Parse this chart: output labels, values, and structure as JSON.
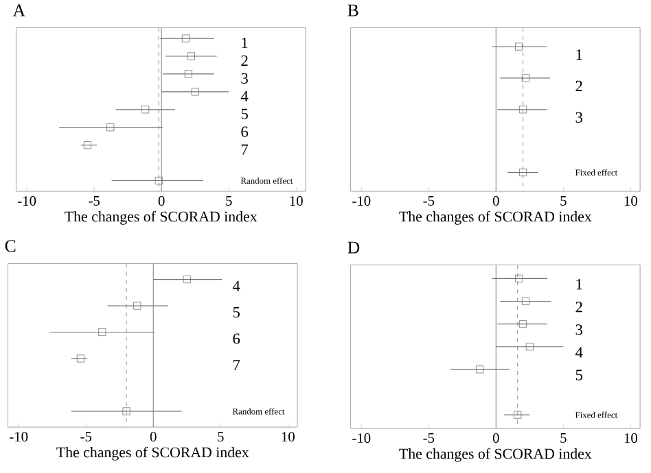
{
  "chart_data": [
    {
      "type": "scatter",
      "title": "A",
      "xlabel": "The changes of SCORAD index",
      "orientation": "horizontal",
      "marker": "square",
      "color": "#707070",
      "categories": [
        "1",
        "2",
        "3",
        "4",
        "5",
        "6",
        "7",
        null,
        "Random effect"
      ],
      "values": [
        1.8,
        2.2,
        2.0,
        2.5,
        -1.2,
        -3.8,
        -5.5,
        null,
        -0.2
      ],
      "errors": [
        [
          -0.1,
          3.9
        ],
        [
          0.3,
          4.1
        ],
        [
          0.1,
          3.9
        ],
        [
          0,
          5.0
        ],
        [
          -3.4,
          1.0
        ],
        [
          -7.6,
          0.1
        ],
        [
          -6.0,
          -4.8
        ],
        null,
        [
          -3.7,
          3.1
        ]
      ],
      "xlim": [
        -10.8,
        10.7
      ],
      "xticks": [
        -10,
        -5,
        0,
        5,
        10
      ],
      "ref_lines": [
        {
          "axis": "x",
          "value": 0,
          "color": "#909090",
          "line_style": "solid"
        },
        {
          "axis": "x",
          "value": -0.2,
          "color": "#a0a0a0",
          "line_style": "dashed"
        }
      ]
    },
    {
      "type": "scatter",
      "title": "B",
      "xlabel": "The changes of SCORAD index",
      "orientation": "horizontal",
      "marker": "square",
      "color": "#707070",
      "categories": [
        "1",
        "2",
        "3",
        null,
        "Fixed effect"
      ],
      "values": [
        1.7,
        2.2,
        2.0,
        null,
        2.0
      ],
      "errors": [
        [
          -0.3,
          3.8
        ],
        [
          0.3,
          4.0
        ],
        [
          0.1,
          3.8
        ],
        null,
        [
          0.85,
          3.1
        ]
      ],
      "xlim": [
        -10.8,
        10.7
      ],
      "xticks": [
        -10,
        -5,
        0,
        5,
        10
      ],
      "ref_lines": [
        {
          "axis": "x",
          "value": 0,
          "color": "#909090",
          "line_style": "solid"
        },
        {
          "axis": "x",
          "value": 2.0,
          "color": "#a0a0a0",
          "line_style": "dashed"
        }
      ]
    },
    {
      "type": "scatter",
      "title": "C",
      "xlabel": "The changes of SCORAD index",
      "orientation": "horizontal",
      "marker": "square",
      "color": "#707070",
      "categories": [
        "4",
        "5",
        "6",
        "7",
        null,
        "Random effect"
      ],
      "values": [
        2.5,
        -1.2,
        -3.8,
        -5.4,
        null,
        -2.0
      ],
      "errors": [
        [
          0,
          5.1
        ],
        [
          -3.4,
          1.1
        ],
        [
          -7.7,
          0.1
        ],
        [
          -6.1,
          -4.9
        ],
        null,
        [
          -6.1,
          2.1
        ]
      ],
      "xlim": [
        -10.8,
        10.7
      ],
      "xticks": [
        -10,
        -5,
        0,
        5,
        10
      ],
      "ref_lines": [
        {
          "axis": "x",
          "value": 0,
          "color": "#909090",
          "line_style": "solid"
        },
        {
          "axis": "x",
          "value": -2.0,
          "color": "#a0a0a0",
          "line_style": "dashed"
        }
      ]
    },
    {
      "type": "scatter",
      "title": "D",
      "xlabel": "The changes of SCORAD index",
      "orientation": "horizontal",
      "marker": "square",
      "color": "#707070",
      "categories": [
        "1",
        "2",
        "3",
        "4",
        "5",
        null,
        "Fixed effect"
      ],
      "values": [
        1.7,
        2.2,
        2.0,
        2.5,
        -1.2,
        null,
        1.6
      ],
      "errors": [
        [
          -0.3,
          3.8
        ],
        [
          0.3,
          4.1
        ],
        [
          0.1,
          3.8
        ],
        [
          0,
          5.0
        ],
        [
          -3.4,
          1.0
        ],
        null,
        [
          0.6,
          2.5
        ]
      ],
      "xlim": [
        -10.8,
        10.7
      ],
      "xticks": [
        -10,
        -5,
        0,
        5,
        10
      ],
      "ref_lines": [
        {
          "axis": "x",
          "value": 0,
          "color": "#909090",
          "line_style": "solid"
        },
        {
          "axis": "x",
          "value": 1.6,
          "color": "#a0a0a0",
          "line_style": "dashed"
        }
      ]
    }
  ]
}
